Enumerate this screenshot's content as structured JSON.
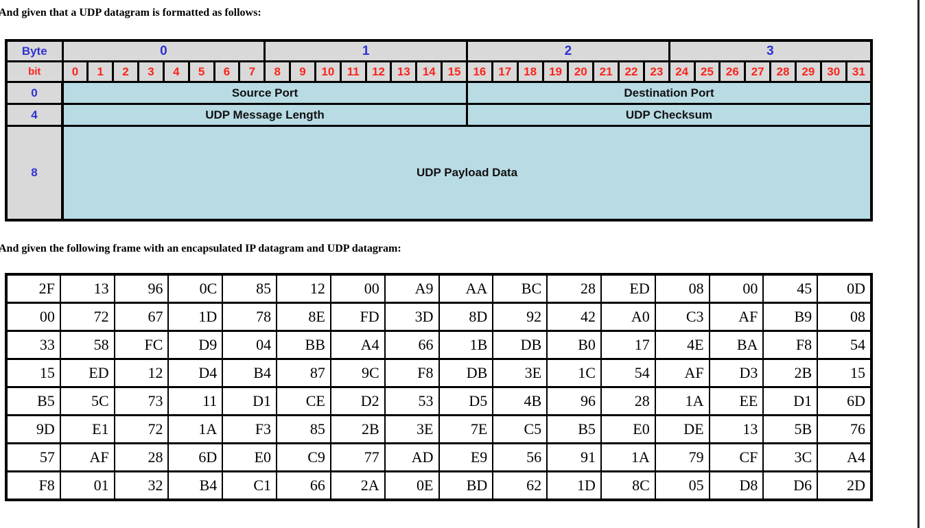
{
  "intro": {
    "line1": "And given that a UDP datagram is formatted as follows:",
    "line2": "And given the following frame with an encapsulated IP datagram and UDP datagram:"
  },
  "colors": {
    "header_fill": "#d9d9d9",
    "field_fill": "#b8dbe4",
    "byte_text": "#2e32cf",
    "bit_text": "#fa241c",
    "border": "#000000"
  },
  "udp_format_table": {
    "corner_label": "Byte",
    "bit_row_label": "bit",
    "byte_columns": [
      "0",
      "1",
      "2",
      "3"
    ],
    "bits_per_byte": 8,
    "bit_numbers": [
      "0",
      "1",
      "2",
      "3",
      "4",
      "5",
      "6",
      "7",
      "8",
      "9",
      "10",
      "11",
      "12",
      "13",
      "14",
      "15",
      "16",
      "17",
      "18",
      "19",
      "20",
      "21",
      "22",
      "23",
      "24",
      "25",
      "26",
      "27",
      "28",
      "29",
      "30",
      "31"
    ],
    "rows": [
      {
        "offset": "0",
        "tall": false,
        "fields": [
          {
            "label": "Source Port",
            "span": 16
          },
          {
            "label": "Destination Port",
            "span": 16
          }
        ]
      },
      {
        "offset": "4",
        "tall": false,
        "fields": [
          {
            "label": "UDP Message Length",
            "span": 16
          },
          {
            "label": "UDP Checksum",
            "span": 16
          }
        ]
      },
      {
        "offset": "8",
        "tall": true,
        "fields": [
          {
            "label": "UDP Payload Data",
            "span": 32
          }
        ]
      }
    ]
  },
  "hex_frame_table": {
    "rows": [
      [
        "2F",
        "13",
        "96",
        "0C",
        "85",
        "12",
        "00",
        "A9",
        "AA",
        "BC",
        "28",
        "ED",
        "08",
        "00",
        "45",
        "0D"
      ],
      [
        "00",
        "72",
        "67",
        "1D",
        "78",
        "8E",
        "FD",
        "3D",
        "8D",
        "92",
        "42",
        "A0",
        "C3",
        "AF",
        "B9",
        "08"
      ],
      [
        "33",
        "58",
        "FC",
        "D9",
        "04",
        "BB",
        "A4",
        "66",
        "1B",
        "DB",
        "B0",
        "17",
        "4E",
        "BA",
        "F8",
        "54"
      ],
      [
        "15",
        "ED",
        "12",
        "D4",
        "B4",
        "87",
        "9C",
        "F8",
        "DB",
        "3E",
        "1C",
        "54",
        "AF",
        "D3",
        "2B",
        "15"
      ],
      [
        "B5",
        "5C",
        "73",
        "11",
        "D1",
        "CE",
        "D2",
        "53",
        "D5",
        "4B",
        "96",
        "28",
        "1A",
        "EE",
        "D1",
        "6D"
      ],
      [
        "9D",
        "E1",
        "72",
        "1A",
        "F3",
        "85",
        "2B",
        "3E",
        "7E",
        "C5",
        "B5",
        "E0",
        "DE",
        "13",
        "5B",
        "76"
      ],
      [
        "57",
        "AF",
        "28",
        "6D",
        "E0",
        "C9",
        "77",
        "AD",
        "E9",
        "56",
        "91",
        "1A",
        "79",
        "CF",
        "3C",
        "A4"
      ],
      [
        "F8",
        "01",
        "32",
        "B4",
        "C1",
        "66",
        "2A",
        "0E",
        "BD",
        "62",
        "1D",
        "8C",
        "05",
        "D8",
        "D6",
        "2D"
      ]
    ]
  }
}
